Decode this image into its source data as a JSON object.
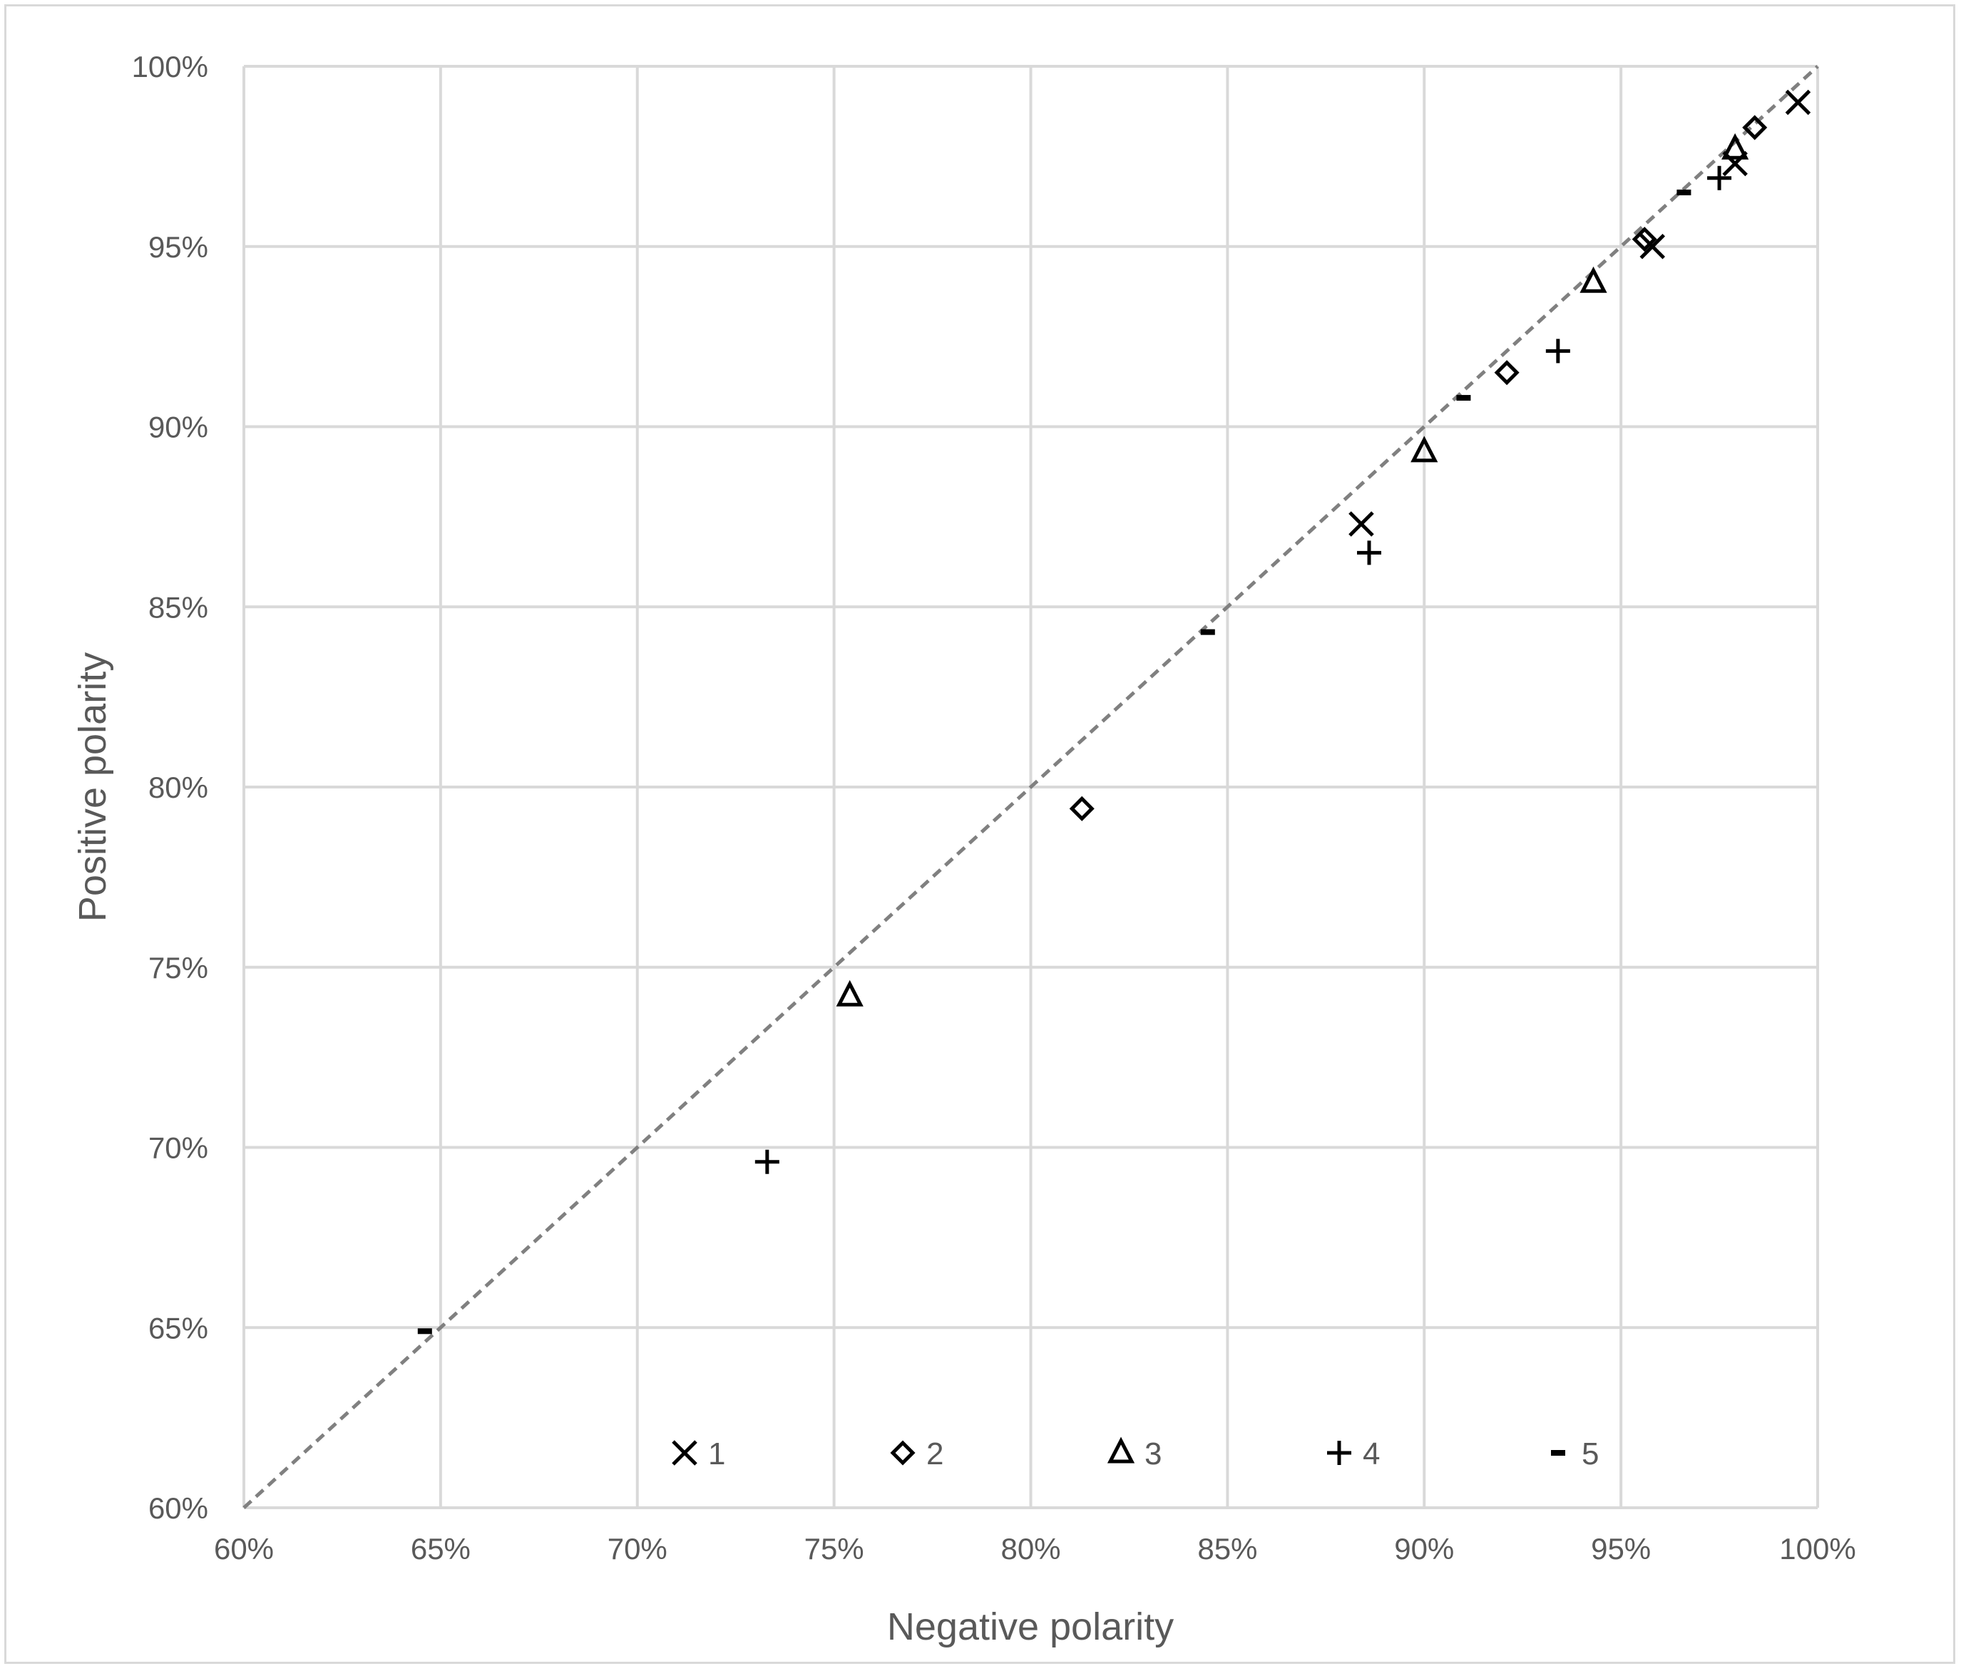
{
  "chart_data": {
    "type": "scatter",
    "xlabel": "Negative polarity",
    "ylabel": "Positive polarity",
    "xlim": [
      60,
      100
    ],
    "ylim": [
      60,
      100
    ],
    "x_ticks": [
      "60%",
      "65%",
      "70%",
      "75%",
      "80%",
      "85%",
      "90%",
      "95%",
      "100%"
    ],
    "y_ticks": [
      "60%",
      "65%",
      "70%",
      "75%",
      "80%",
      "85%",
      "90%",
      "95%",
      "100%"
    ],
    "grid": true,
    "legend_position": "bottom-inside",
    "reference_line": {
      "type": "y=x",
      "style": "dashed",
      "color": "#808080"
    },
    "gridline_color": "#d9d9d9",
    "text_color": "#595959",
    "series": [
      {
        "name": "1",
        "marker": "x",
        "points": [
          [
            88.4,
            87.3
          ],
          [
            95.8,
            95.0
          ],
          [
            97.9,
            97.3
          ],
          [
            99.5,
            99.0
          ]
        ]
      },
      {
        "name": "2",
        "marker": "diamond",
        "points": [
          [
            81.3,
            79.4
          ],
          [
            92.1,
            91.5
          ],
          [
            95.6,
            95.2
          ],
          [
            98.4,
            98.3
          ]
        ]
      },
      {
        "name": "3",
        "marker": "triangle",
        "points": [
          [
            75.4,
            74.2
          ],
          [
            90.0,
            89.3
          ],
          [
            94.3,
            94.0
          ],
          [
            97.9,
            97.7
          ]
        ]
      },
      {
        "name": "4",
        "marker": "plus",
        "points": [
          [
            73.3,
            69.6
          ],
          [
            88.6,
            86.5
          ],
          [
            93.4,
            92.1
          ],
          [
            97.5,
            96.9
          ]
        ]
      },
      {
        "name": "5",
        "marker": "dash",
        "points": [
          [
            64.6,
            64.9
          ],
          [
            84.5,
            84.3
          ],
          [
            91.0,
            90.8
          ],
          [
            96.6,
            96.5
          ]
        ]
      }
    ]
  }
}
